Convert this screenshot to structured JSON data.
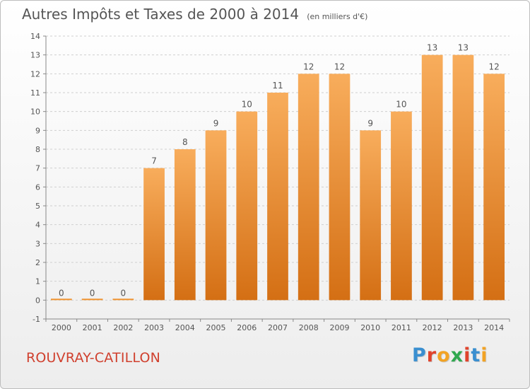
{
  "header": {
    "title": "Autres Impôts et Taxes de 2000 à 2014",
    "subtitle": "(en milliers d'€)"
  },
  "footer": {
    "commune": "ROUVRAY-CATILLON",
    "brand": "Proxiti",
    "brand_colors": [
      "#3a8fd0",
      "#e0432c",
      "#f2a324",
      "#2fa84f",
      "#e0432c",
      "#3a8fd0",
      "#f2a324"
    ]
  },
  "colors": {
    "bar": "#f0922e",
    "bar_light": "#f8ad5c",
    "bar_dark": "#d46f14",
    "commune_text": "#d0402e"
  },
  "chart_data": {
    "type": "bar",
    "title": "Autres Impôts et Taxes de 2000 à 2014",
    "subtitle": "(en milliers d'€)",
    "categories": [
      "2000",
      "2001",
      "2002",
      "2003",
      "2004",
      "2005",
      "2006",
      "2007",
      "2008",
      "2009",
      "2010",
      "2011",
      "2012",
      "2013",
      "2014"
    ],
    "values": [
      0,
      0,
      0,
      7,
      8,
      9,
      10,
      11,
      12,
      12,
      9,
      10,
      13,
      13,
      12
    ],
    "data_labels": [
      "0",
      "0",
      "0",
      "7",
      "8",
      "9",
      "10",
      "11",
      "12",
      "12",
      "9",
      "10",
      "13",
      "13",
      "12"
    ],
    "y_ticks": [
      "-1",
      "0",
      "1",
      "2",
      "3",
      "4",
      "5",
      "6",
      "7",
      "8",
      "9",
      "10",
      "11",
      "12",
      "13",
      "14"
    ],
    "ylim": [
      -1,
      14
    ],
    "grid": "horizontal dashed",
    "legend": "none"
  }
}
